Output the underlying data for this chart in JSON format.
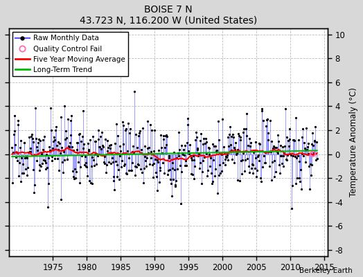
{
  "title": "BOISE 7 N",
  "subtitle": "43.723 N, 116.200 W (United States)",
  "ylabel": "Temperature Anomaly (°C)",
  "credit": "Berkeley Earth",
  "ylim": [
    -8.5,
    10.5
  ],
  "yticks": [
    -8,
    -6,
    -4,
    -2,
    0,
    2,
    4,
    6,
    8,
    10
  ],
  "xlim": [
    1968.5,
    2015.5
  ],
  "xticks": [
    1975,
    1980,
    1985,
    1990,
    1995,
    2000,
    2005,
    2010,
    2015
  ],
  "fig_bg": "#d8d8d8",
  "plot_bg": "#ffffff",
  "raw_line_color": "#5555ff",
  "dot_color": "#000000",
  "mavg_color": "#ff0000",
  "trend_color": "#00bb00",
  "qc_color": "#ff69b4",
  "seed": 17,
  "n_months": 540,
  "start_year": 1969.0,
  "qc_fail_x": 2013.25,
  "qc_fail_y": 0.05
}
